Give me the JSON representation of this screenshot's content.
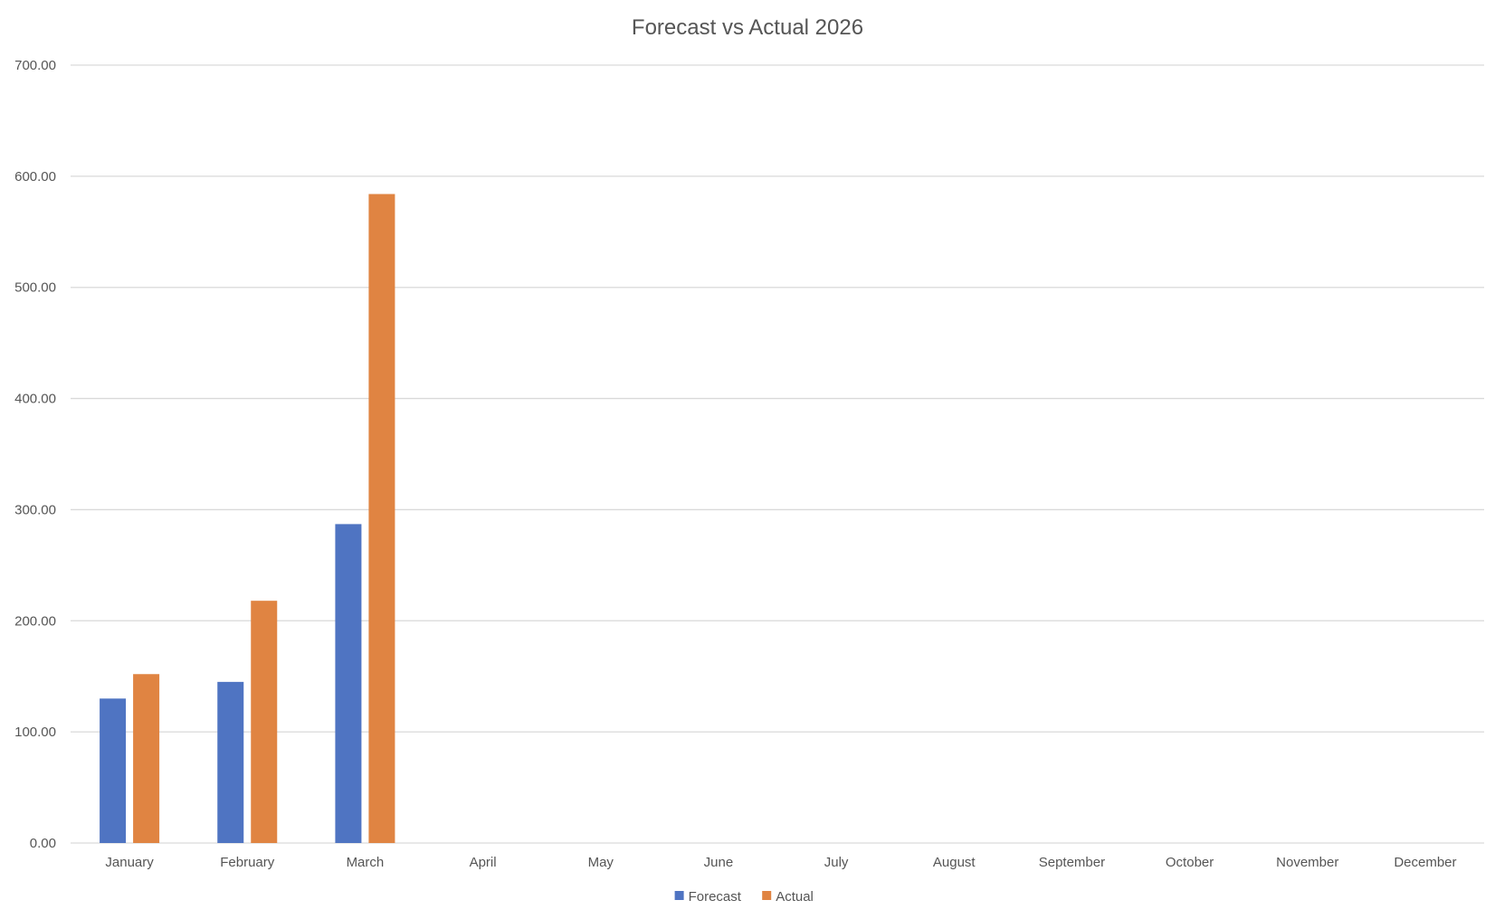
{
  "chart_data": {
    "type": "bar",
    "title": "Forecast vs Actual 2026",
    "xlabel": "",
    "ylabel": "",
    "categories": [
      "January",
      "February",
      "March",
      "April",
      "May",
      "June",
      "July",
      "August",
      "September",
      "October",
      "November",
      "December"
    ],
    "series": [
      {
        "name": "Forecast",
        "color": "#4f74c2",
        "values": [
          130,
          145,
          287,
          null,
          null,
          null,
          null,
          null,
          null,
          null,
          null,
          null
        ]
      },
      {
        "name": "Actual",
        "color": "#e08442",
        "values": [
          152,
          218,
          584,
          null,
          null,
          null,
          null,
          null,
          null,
          null,
          null,
          null
        ]
      }
    ],
    "ylim": [
      0,
      700
    ],
    "yticks": [
      0,
      100,
      200,
      300,
      400,
      500,
      600,
      700
    ],
    "ytick_labels": [
      "0.00",
      "100.00",
      "200.00",
      "300.00",
      "400.00",
      "500.00",
      "600.00",
      "700.00"
    ],
    "grid": true,
    "legend_position": "bottom"
  }
}
